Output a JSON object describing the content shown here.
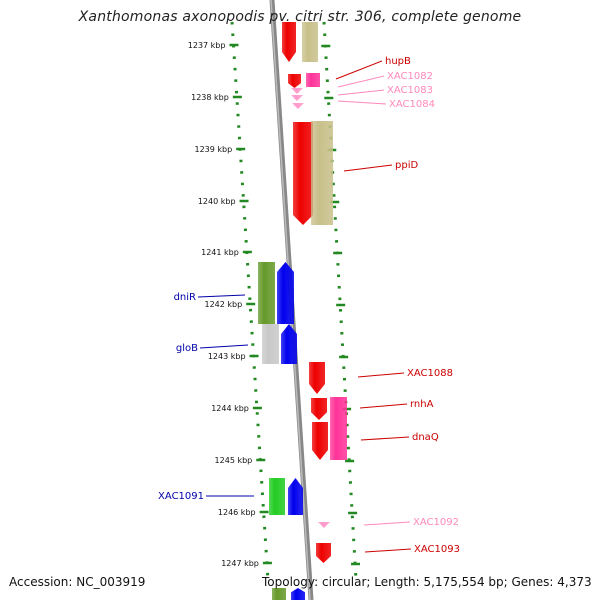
{
  "title": "Xanthomonas axonopodis pv. citri str. 306, complete genome",
  "accession": "Accession: NC_003919",
  "topology": "Topology: circular; Length: 5,175,554 bp; Genes: 4,373",
  "colors": {
    "red": "#ee0000",
    "pink": "#ff3399",
    "lightPink": "#ff99cc",
    "olive": "#c8c08a",
    "green": "#66992b",
    "brightGreen": "#22cc22",
    "blue": "#0000ee",
    "gray": "#c8c8c8",
    "backbone": "#888888",
    "tick": "#228822",
    "labelRed": "#cc0000",
    "labelBlue": "#0000aa",
    "labelPink": "#ff88bb"
  },
  "ticks": [
    {
      "label": "1237 kbp"
    },
    {
      "label": "1238 kbp"
    },
    {
      "label": "1239 kbp"
    },
    {
      "label": "1240 kbp"
    },
    {
      "label": "1241 kbp"
    },
    {
      "label": "1242 kbp"
    },
    {
      "label": "1243 kbp"
    },
    {
      "label": "1244 kbp"
    },
    {
      "label": "1245 kbp"
    },
    {
      "label": "1246 kbp"
    },
    {
      "label": "1247 kbp"
    }
  ],
  "genes_right": [
    {
      "name": "hupB",
      "color": "labelRed"
    },
    {
      "name": "XAC1082",
      "color": "labelPink"
    },
    {
      "name": "XAC1083",
      "color": "labelPink"
    },
    {
      "name": "XAC1084",
      "color": "labelPink"
    },
    {
      "name": "ppiD",
      "color": "labelRed"
    },
    {
      "name": "XAC1088",
      "color": "labelRed"
    },
    {
      "name": "rnhA",
      "color": "labelRed"
    },
    {
      "name": "dnaQ",
      "color": "labelRed"
    },
    {
      "name": "XAC1092",
      "color": "labelPink"
    },
    {
      "name": "XAC1093",
      "color": "labelRed"
    }
  ],
  "genes_left": [
    {
      "name": "dniR",
      "color": "labelBlue"
    },
    {
      "name": "gloB",
      "color": "labelBlue"
    },
    {
      "name": "XAC1091",
      "color": "labelBlue"
    }
  ]
}
